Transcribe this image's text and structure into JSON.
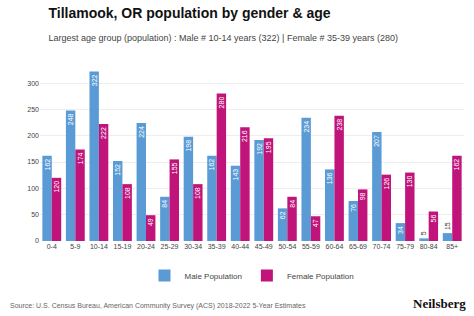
{
  "chart_data": {
    "type": "bar",
    "title": "Tillamook, OR population by gender & age",
    "subtitle": "Largest age group (population) : Male # 10-14 years (322) | Female # 35-39 years (280)",
    "annotations": [
      "Source: U.S. Census Bureau, American Community Survey (ACS) 2018-2022 5-Year Estimates",
      "Neilsberg"
    ],
    "categories": [
      "0-4",
      "5-9",
      "10-14",
      "15-19",
      "20-24",
      "25-29",
      "30-34",
      "35-39",
      "40-44",
      "45-49",
      "50-54",
      "55-59",
      "60-64",
      "65-69",
      "70-74",
      "75-79",
      "80-84",
      "85+"
    ],
    "series": [
      {
        "name": "Male Population",
        "color": "#5B9BD5",
        "values": [
          162,
          248,
          322,
          152,
          224,
          84,
          198,
          162,
          143,
          192,
          62,
          234,
          136,
          76,
          207,
          34,
          5,
          15
        ]
      },
      {
        "name": "Female Population",
        "color": "#C0147A",
        "values": [
          120,
          174,
          222,
          108,
          49,
          155,
          108,
          280,
          216,
          195,
          84,
          47,
          238,
          98,
          126,
          130,
          56,
          162
        ]
      }
    ],
    "ylim": [
      0,
      340
    ],
    "yticks": [
      0,
      50,
      100,
      150,
      200,
      250,
      300
    ],
    "grid": true,
    "legend": "bottom",
    "data_labels": true
  }
}
